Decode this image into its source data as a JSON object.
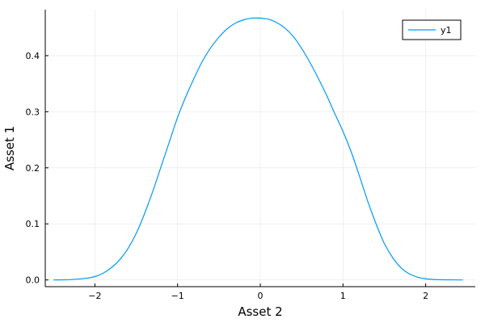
{
  "chart_data": {
    "type": "line",
    "title": "",
    "xlabel": "Asset 2",
    "ylabel": "Asset 1",
    "xlim": [
      -2.6,
      2.6
    ],
    "ylim": [
      -0.012,
      0.482
    ],
    "xticks": [
      -2,
      -1,
      0,
      1,
      2
    ],
    "xtick_labels": [
      "−2",
      "−1",
      "0",
      "1",
      "2"
    ],
    "yticks": [
      0.0,
      0.1,
      0.2,
      0.3,
      0.4
    ],
    "ytick_labels": [
      "0.0",
      "0.1",
      "0.2",
      "0.3",
      "0.4"
    ],
    "grid": true,
    "legend": {
      "position": "top-right",
      "entries": [
        "y1"
      ]
    },
    "series": [
      {
        "name": "y1",
        "color": "#009af9",
        "x": [
          -2.5,
          -2.3,
          -2.1,
          -2.0,
          -1.9,
          -1.8,
          -1.7,
          -1.6,
          -1.5,
          -1.4,
          -1.3,
          -1.2,
          -1.1,
          -1.0,
          -0.9,
          -0.8,
          -0.7,
          -0.6,
          -0.5,
          -0.4,
          -0.3,
          -0.2,
          -0.1,
          0.0,
          0.05,
          0.1,
          0.2,
          0.3,
          0.4,
          0.5,
          0.6,
          0.7,
          0.8,
          0.9,
          1.0,
          1.1,
          1.2,
          1.3,
          1.4,
          1.5,
          1.6,
          1.7,
          1.8,
          1.9,
          2.0,
          2.1,
          2.3,
          2.45
        ],
        "y": [
          0.0,
          0.0005,
          0.003,
          0.006,
          0.012,
          0.022,
          0.036,
          0.056,
          0.083,
          0.118,
          0.158,
          0.202,
          0.246,
          0.29,
          0.327,
          0.36,
          0.39,
          0.414,
          0.433,
          0.448,
          0.458,
          0.464,
          0.467,
          0.467,
          0.466,
          0.465,
          0.459,
          0.449,
          0.434,
          0.413,
          0.388,
          0.36,
          0.33,
          0.297,
          0.265,
          0.228,
          0.185,
          0.14,
          0.1,
          0.065,
          0.04,
          0.022,
          0.011,
          0.005,
          0.002,
          0.0008,
          0.0002,
          0.0
        ]
      }
    ]
  }
}
